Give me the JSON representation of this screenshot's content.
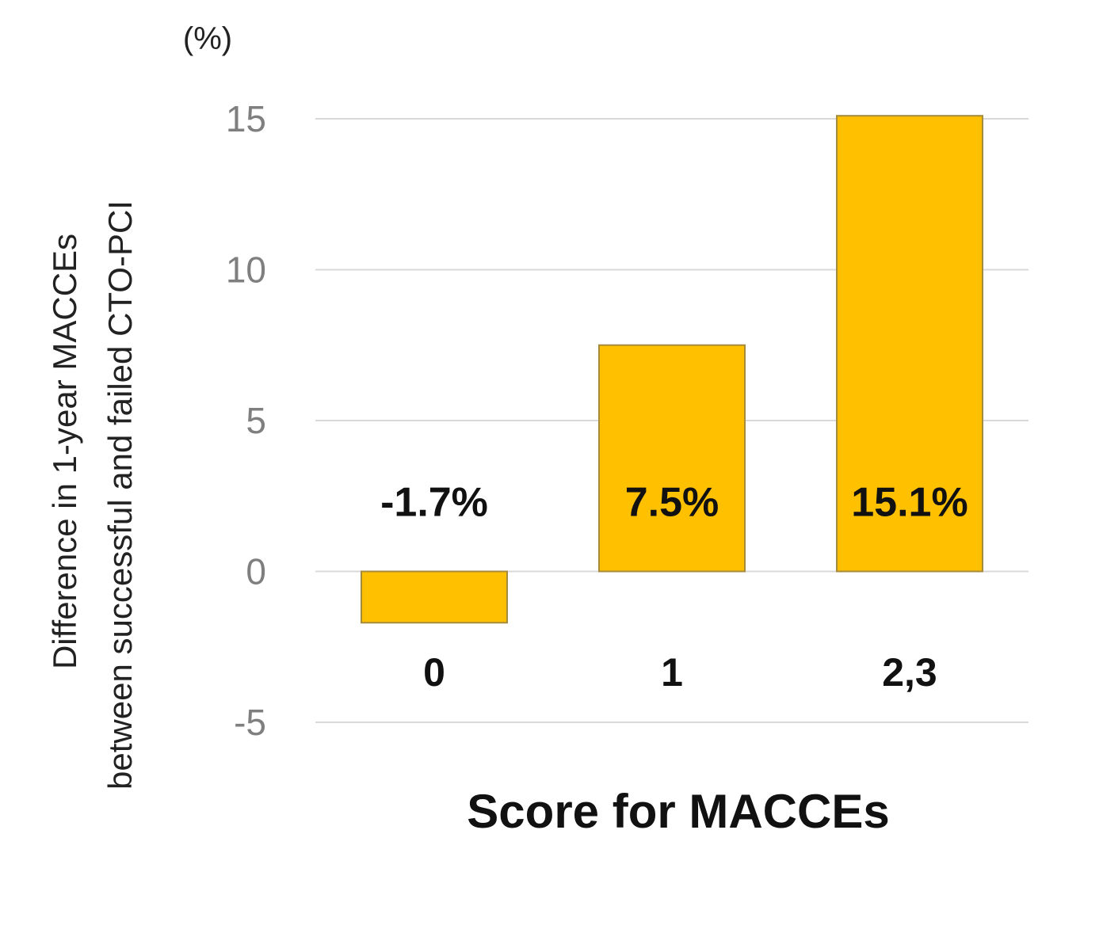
{
  "chart_data": {
    "type": "bar",
    "unit_label": "(%)",
    "categories": [
      "0",
      "1",
      "2,3"
    ],
    "values": [
      -1.7,
      7.5,
      15.1
    ],
    "data_labels": [
      "-1.7%",
      "7.5%",
      "15.1%"
    ],
    "xlabel": "Score for MACCEs",
    "ylabel_lines": [
      "Difference in 1-year MACCEs",
      "between successful and failed CTO-PCI"
    ],
    "ylim": [
      -5,
      15
    ],
    "yticks": [
      15,
      10,
      5,
      0,
      -5
    ],
    "grid": true,
    "bar_color": "#ffc000"
  }
}
